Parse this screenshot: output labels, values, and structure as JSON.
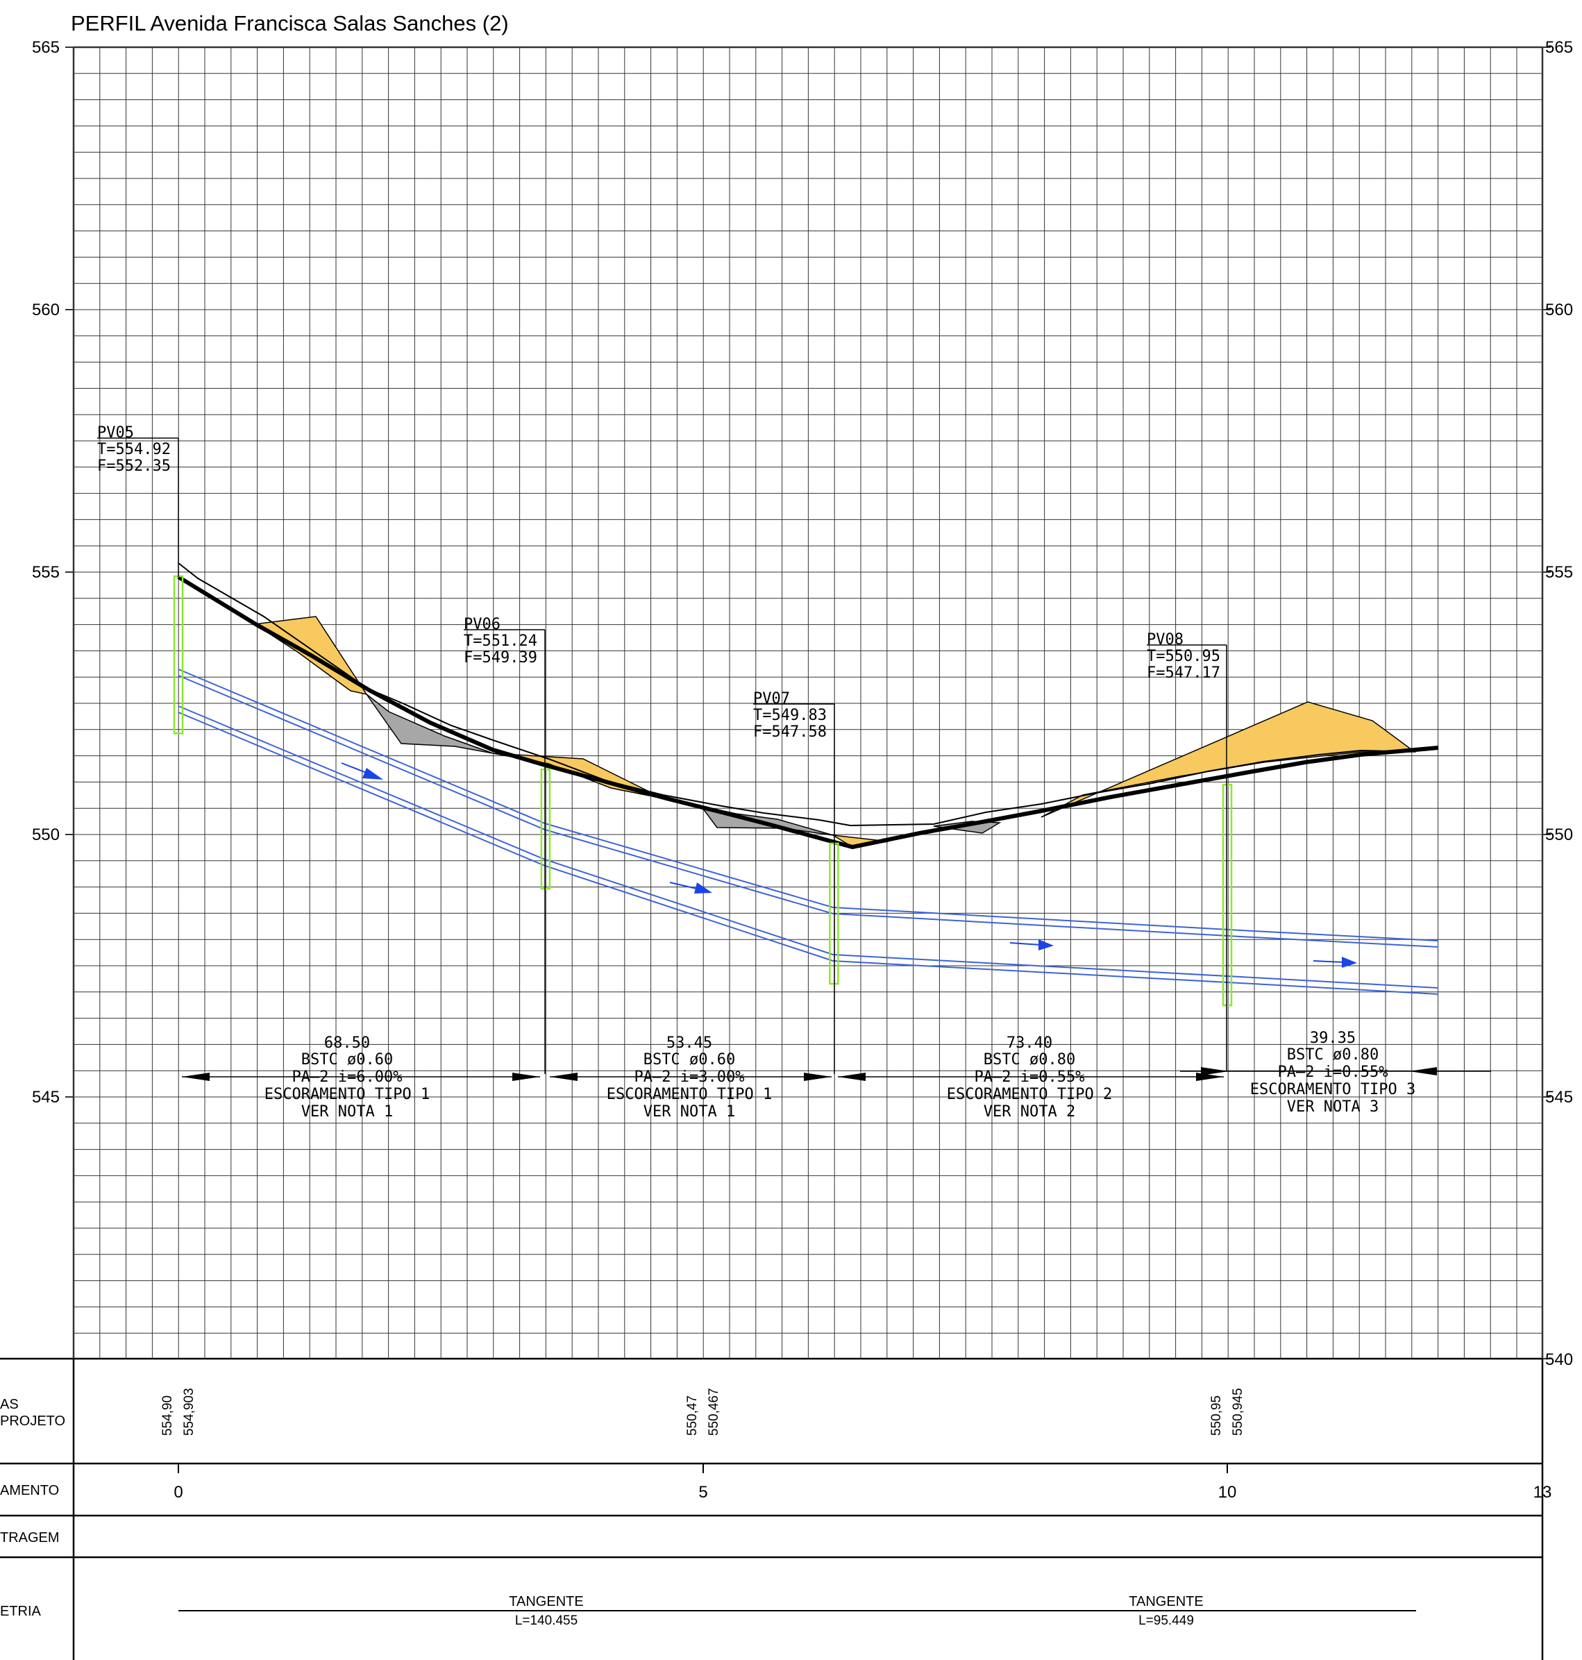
{
  "title": "PERFIL Avenida Francisca Salas Sanches (2)",
  "colors": {
    "grid": "#333333",
    "pipe": "#3d63d6",
    "flow_arrow": "#1a44e8",
    "fill_area": "#f7c95e",
    "cut_area": "#a7a7a7",
    "manhole": "#8ee62e",
    "profile_line": "#000000"
  },
  "elevation_ticks_left": [
    "565",
    "560",
    "555",
    "550",
    "545"
  ],
  "elevation_ticks_right": [
    "565",
    "560",
    "555",
    "550",
    "545",
    "540"
  ],
  "manholes": [
    {
      "name": "PV05",
      "t_label": "T=554.92",
      "f_label": "F=552.35",
      "station": 0,
      "t": 554.92,
      "f": 552.35
    },
    {
      "name": "PV06",
      "t_label": "T=551.24",
      "f_label": "F=549.39",
      "station": 3.5,
      "t": 551.24,
      "f": 549.39
    },
    {
      "name": "PV07",
      "t_label": "T=549.83",
      "f_label": "F=547.58",
      "station": 6.25,
      "t": 549.83,
      "f": 547.58
    },
    {
      "name": "PV08",
      "t_label": "T=550.95",
      "f_label": "F=547.17",
      "station": 10,
      "t": 550.95,
      "f": 547.17
    }
  ],
  "segments": [
    {
      "length": "68.50",
      "pipe": "BSTC  ø0.60",
      "slope": "PA–2  i=6.00%",
      "shoring": "ESCORAMENTO  TIPO  1",
      "note": "VER  NOTA  1"
    },
    {
      "length": "53.45",
      "pipe": "BSTC  ø0.60",
      "slope": "PA–2  i=3.00%",
      "shoring": "ESCORAMENTO  TIPO  1",
      "note": "VER  NOTA  1"
    },
    {
      "length": "73.40",
      "pipe": "BSTC  ø0.80",
      "slope": "PA–2  i=0.55%",
      "shoring": "ESCORAMENTO  TIPO  2",
      "note": "VER  NOTA  2"
    },
    {
      "length": "39.35",
      "pipe": "BSTC  ø0.80",
      "slope": "PA–2  i=0.55%",
      "shoring": "ESCORAMENTO  TIPO  3",
      "note": "VER  NOTA  3"
    }
  ],
  "band_labels": {
    "cotas_line1": "AS",
    "cotas_line2": "PROJETO",
    "estaqueamento": "AMENTO",
    "metragem": "TRAGEM",
    "geometria": "ETRIA"
  },
  "cotas": [
    {
      "terreno": "554,90",
      "projeto": "554,903",
      "station": 0
    },
    {
      "terreno": "550,47",
      "projeto": "550,467",
      "station": 5
    },
    {
      "terreno": "550,95",
      "projeto": "550,945",
      "station": 10
    }
  ],
  "stations": [
    "0",
    "5",
    "10",
    "13"
  ],
  "geometry": [
    {
      "label": "TANGENTE",
      "length": "L=140.455"
    },
    {
      "label": "TANGENTE",
      "length": "L=95.449"
    }
  ]
}
